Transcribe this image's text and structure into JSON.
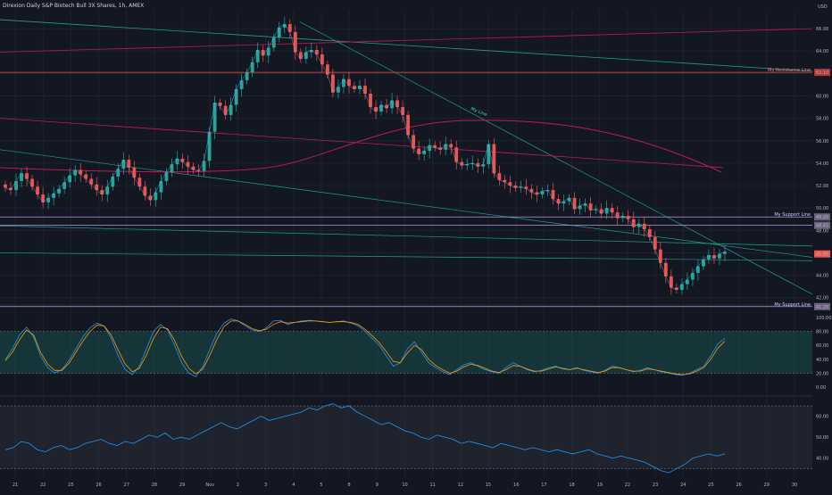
{
  "header": {
    "title": "Direxion Daily S&P Biotech Bull 3X Shares, 1h, AMEX"
  },
  "colors": {
    "background": "#131722",
    "grid": "#1e222d",
    "up": "#26a69a",
    "down": "#ef5350",
    "support": "#b39ddb",
    "resistance": "#ef5350",
    "trend": "#1e9e94",
    "ma": "#c2185b",
    "stoch_k": "#2196f3",
    "stoch_d": "#ff9800",
    "stoch_band": "#1a4f4a",
    "rsi": "#2196f3",
    "rsi_band": "#2a2e39"
  },
  "chart_data": [
    {
      "type": "candlestick",
      "title": "Direxion Daily S&P Biotech Bull 3X Shares, 1h, AMEX",
      "currency": "USD",
      "x_tick_labels": [
        "21",
        "22",
        "25",
        "26",
        "27",
        "28",
        "29",
        "Nov",
        "2",
        "3",
        "4",
        "5",
        "8",
        "9",
        "10",
        "11",
        "12",
        "15",
        "16",
        "17",
        "18",
        "19",
        "22",
        "23",
        "24",
        "25",
        "26",
        "29",
        "30"
      ],
      "y_tick_labels": [
        "42.00",
        "44.00",
        "46.00",
        "48.00",
        "50.00",
        "52.00",
        "54.00",
        "56.00",
        "58.00",
        "60.00",
        "62.00",
        "64.00",
        "66.00"
      ],
      "ylim": [
        41.5,
        67.6
      ],
      "closes": [
        51.8,
        51.6,
        52.4,
        53.1,
        52.6,
        51.9,
        51.2,
        50.5,
        50.9,
        51.3,
        51.7,
        52.3,
        52.9,
        53.4,
        53.0,
        52.6,
        52.1,
        51.6,
        51.2,
        51.9,
        52.8,
        53.5,
        54.3,
        53.6,
        52.7,
        51.9,
        51.1,
        50.7,
        51.4,
        52.4,
        53.2,
        53.9,
        54.4,
        54.1,
        53.7,
        53.4,
        53.3,
        54.2,
        56.8,
        59.4,
        59.1,
        58.3,
        59.2,
        60.6,
        61.4,
        62.1,
        63.0,
        64.1,
        63.6,
        64.3,
        65.2,
        66.1,
        66.4,
        65.7,
        63.9,
        63.3,
        63.9,
        64.1,
        63.7,
        62.8,
        61.9,
        60.3,
        60.8,
        61.5,
        60.9,
        60.6,
        60.9,
        60.2,
        59.0,
        58.6,
        59.2,
        58.9,
        59.6,
        59.0,
        58.3,
        56.5,
        55.3,
        54.8,
        55.1,
        55.6,
        55.4,
        55.2,
        55.7,
        55.4,
        54.1,
        53.8,
        53.9,
        54.0,
        53.7,
        53.9,
        55.7,
        53.1,
        52.5,
        52.3,
        52.0,
        51.8,
        51.9,
        51.7,
        51.4,
        51.2,
        51.5,
        51.6,
        50.8,
        50.4,
        50.6,
        50.9,
        49.9,
        50.2,
        50.4,
        49.8,
        49.9,
        49.5,
        50.0,
        49.6,
        49.1,
        49.3,
        49.0,
        48.3,
        48.6,
        48.1,
        47.4,
        46.3,
        45.1,
        43.9,
        42.9,
        42.7,
        43.2,
        43.6,
        44.2,
        44.8,
        45.4,
        45.8,
        45.5,
        45.9,
        46.1
      ],
      "levels": [
        {
          "name": "My Resistance Line",
          "value": 62.1,
          "value_label": "62.10"
        },
        {
          "name": "My Support Line",
          "value": 49.2,
          "value_label": "49.20"
        },
        {
          "name": "My Support Line",
          "value": 41.2,
          "value_label": "41.20"
        }
      ],
      "extra_price_tags": [
        "48.45",
        "45.90"
      ],
      "annotations": [
        "My Line"
      ]
    },
    {
      "type": "line",
      "indicator": "stochastic",
      "y_tick_labels": [
        "100.00",
        "80.00",
        "60.00",
        "40.00",
        "20.00",
        "0.00"
      ],
      "ylim": [
        0,
        100
      ],
      "band": [
        20,
        80
      ],
      "series": [
        {
          "name": "",
          "values": [
            40,
            55,
            75,
            86,
            72,
            45,
            28,
            20,
            25,
            38,
            55,
            72,
            85,
            92,
            88,
            70,
            45,
            25,
            18,
            30,
            55,
            80,
            90,
            82,
            60,
            35,
            20,
            15,
            30,
            55,
            78,
            92,
            98,
            95,
            88,
            82,
            80,
            85,
            95,
            96,
            90,
            93,
            95,
            96,
            95,
            94,
            93,
            94,
            95,
            92,
            88,
            80,
            70,
            60,
            45,
            30,
            35,
            55,
            65,
            50,
            35,
            28,
            22,
            18,
            25,
            32,
            35,
            30,
            25,
            22,
            20,
            28,
            35,
            30,
            25,
            22,
            24,
            28,
            30,
            26,
            25,
            28,
            24,
            22,
            20,
            24,
            30,
            28,
            25,
            22,
            24,
            28,
            25,
            22,
            20,
            18,
            17,
            20,
            25,
            30,
            45,
            62,
            70
          ]
        },
        {
          "name": "",
          "values": [
            38,
            50,
            68,
            82,
            75,
            50,
            33,
            24,
            24,
            34,
            50,
            66,
            80,
            89,
            88,
            75,
            53,
            33,
            22,
            27,
            46,
            70,
            86,
            84,
            67,
            44,
            27,
            19,
            26,
            46,
            69,
            87,
            95,
            95,
            90,
            84,
            81,
            83,
            90,
            94,
            92,
            93,
            94,
            95,
            95,
            94,
            93,
            94,
            94,
            93,
            90,
            83,
            74,
            64,
            51,
            37,
            35,
            49,
            60,
            54,
            40,
            31,
            25,
            20,
            23,
            29,
            33,
            31,
            27,
            23,
            21,
            25,
            31,
            30,
            26,
            23,
            23,
            26,
            29,
            27,
            25,
            27,
            25,
            23,
            21,
            23,
            28,
            28,
            25,
            23,
            23,
            26,
            25,
            23,
            21,
            19,
            18,
            19,
            23,
            28,
            40,
            56,
            66
          ]
        }
      ]
    },
    {
      "type": "line",
      "indicator": "rsi",
      "y_tick_labels": [
        "60.00",
        "50.00",
        "40.00"
      ],
      "ylim": [
        33,
        68
      ],
      "series": [
        {
          "name": "",
          "values": [
            44,
            45,
            48,
            47,
            44,
            43,
            45,
            46,
            44,
            45,
            47,
            48,
            49,
            47,
            46,
            48,
            47,
            49,
            51,
            50,
            52,
            49,
            50,
            49,
            51,
            53,
            55,
            57,
            55,
            54,
            56,
            58,
            60,
            58,
            59,
            60,
            61,
            62,
            64,
            63,
            65,
            66,
            64,
            65,
            62,
            60,
            58,
            56,
            57,
            55,
            53,
            52,
            50,
            49,
            51,
            50,
            49,
            47,
            48,
            47,
            46,
            45,
            47,
            46,
            45,
            44,
            45,
            44,
            43,
            44,
            43,
            42,
            43,
            44,
            42,
            41,
            40,
            41,
            40,
            39,
            38,
            36,
            34,
            33,
            35,
            37,
            40,
            41,
            42,
            41,
            42
          ]
        }
      ]
    }
  ]
}
